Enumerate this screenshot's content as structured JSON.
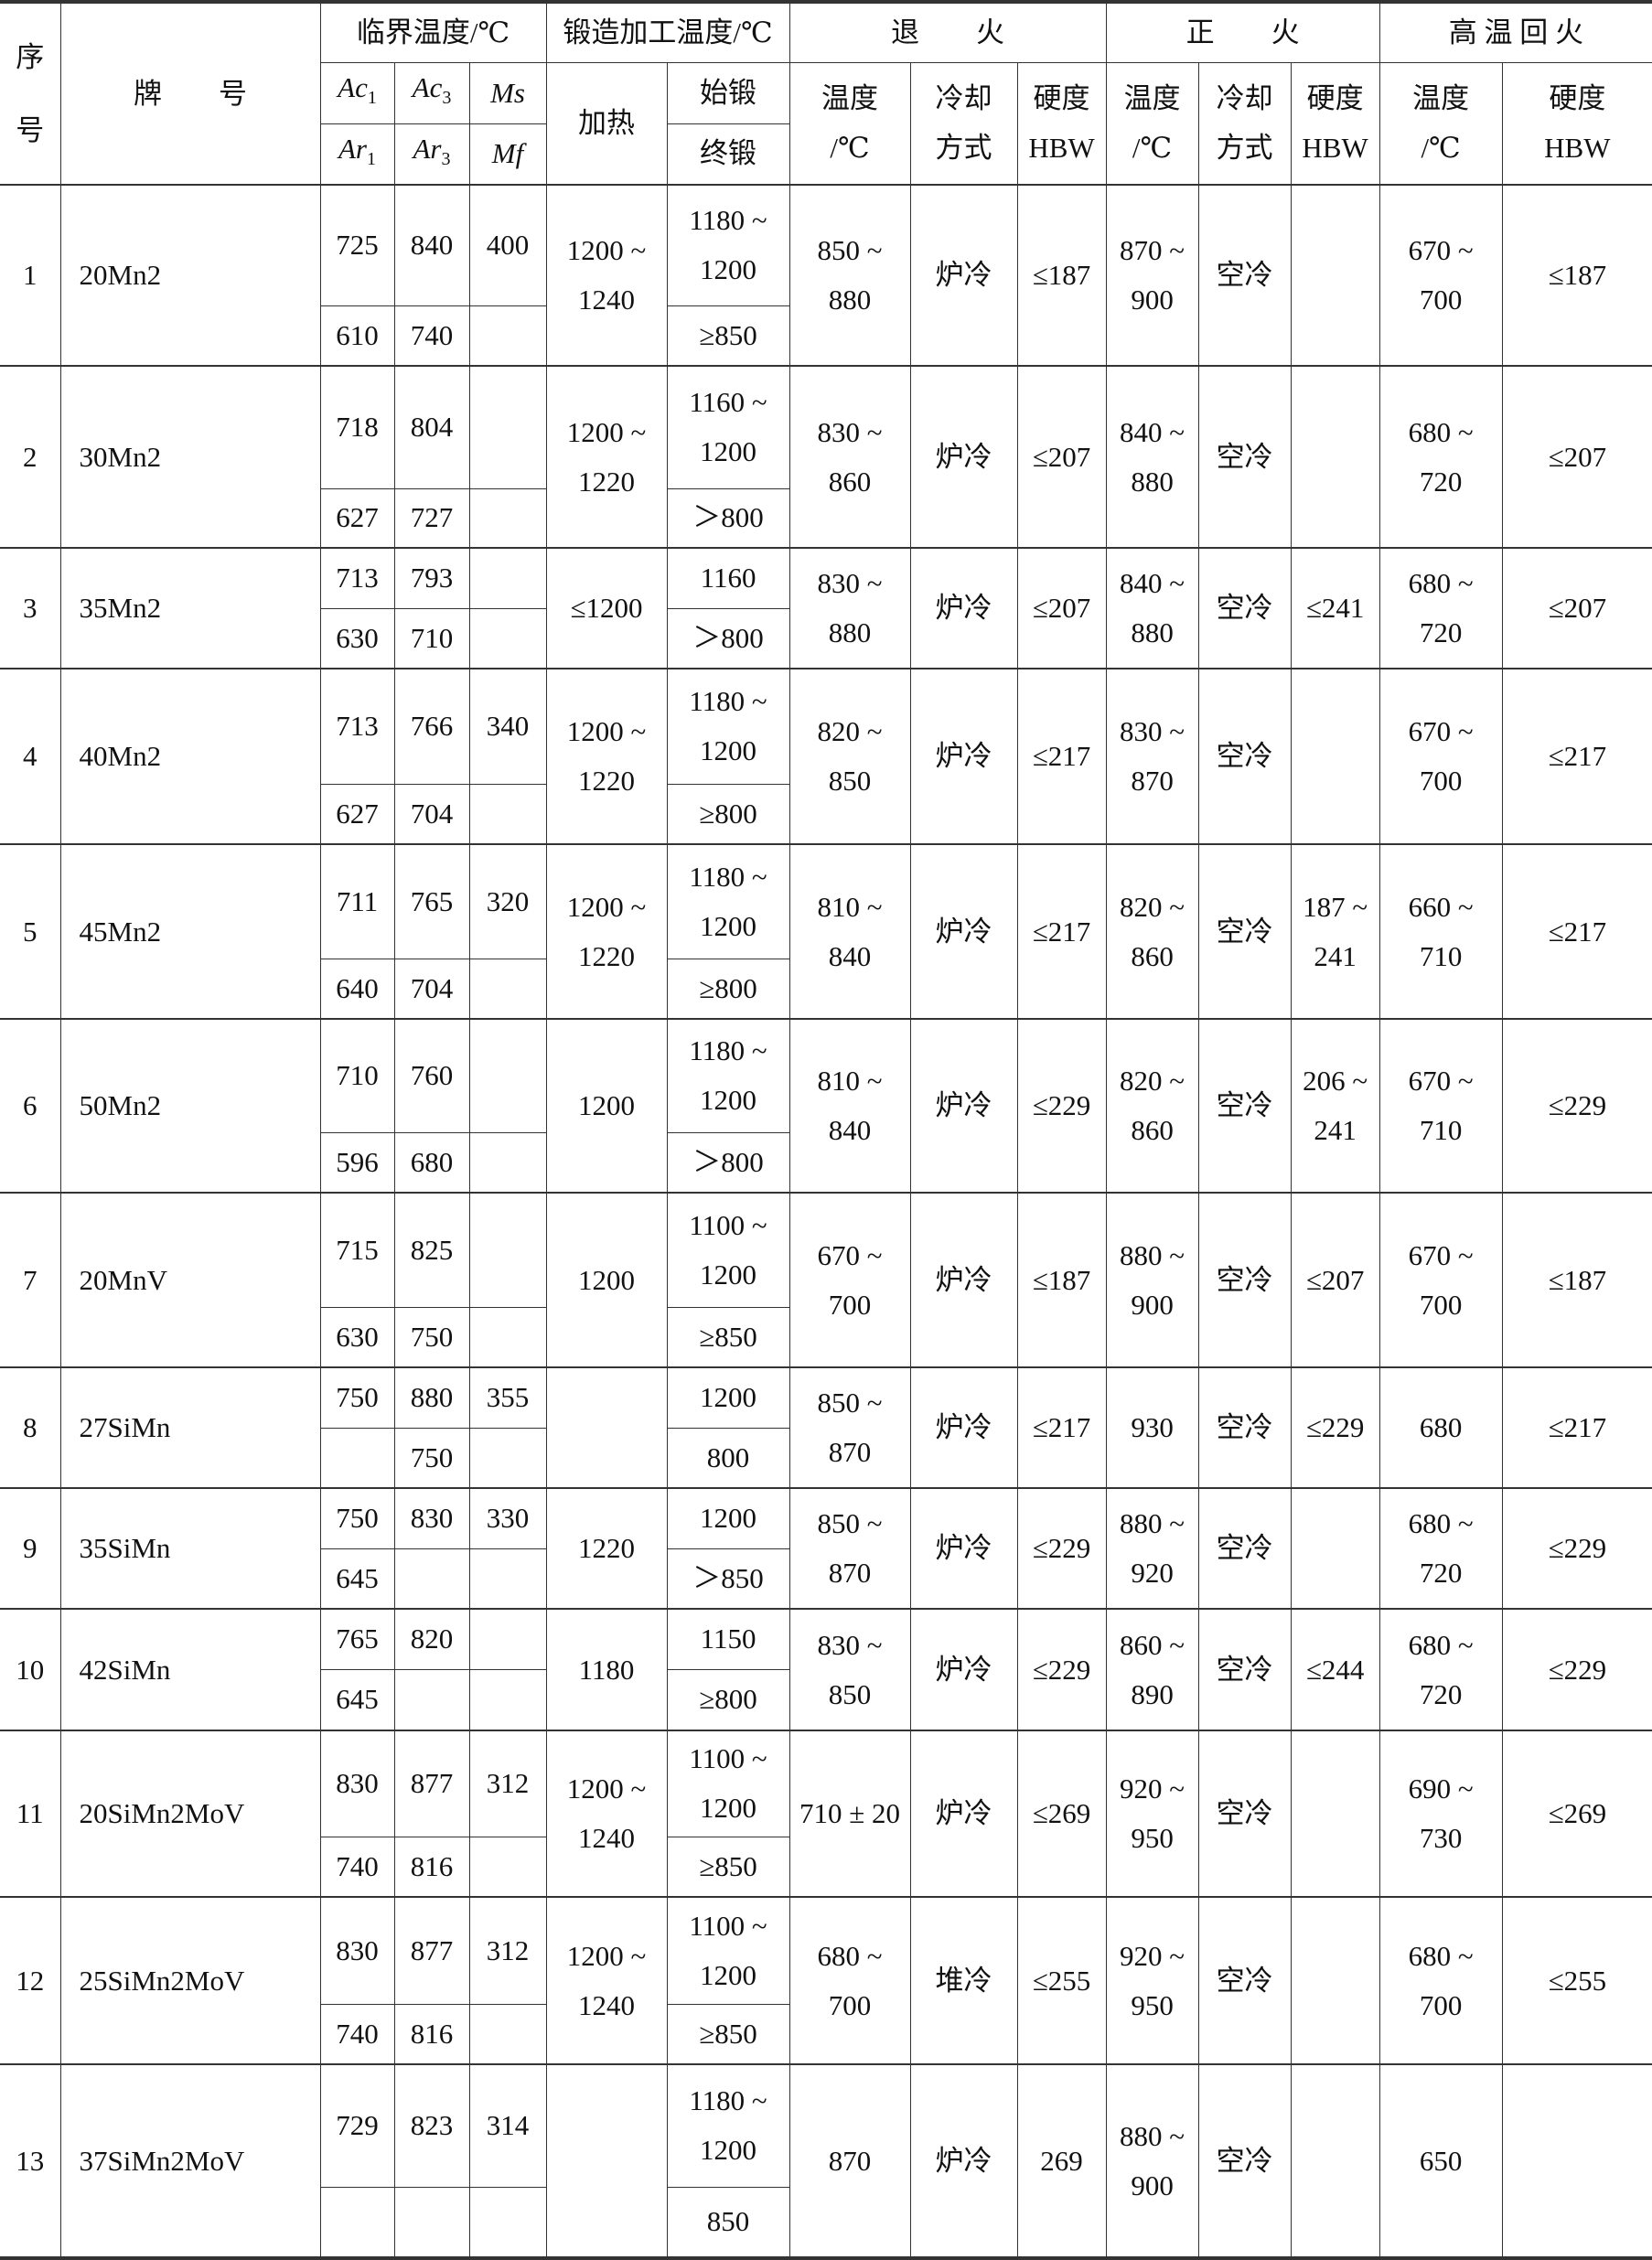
{
  "header": {
    "seq": "序\n\n号",
    "grade": "牌　　号",
    "critical": "临界温度/℃",
    "forging": "锻造加工温度/℃",
    "annealing": "退　　火",
    "normalizing": "正　　火",
    "tempering": "高 温 回 火",
    "ac1": {
      "main": "Ac",
      "sub": "1"
    },
    "ac3": {
      "main": "Ac",
      "sub": "3"
    },
    "ms": {
      "main": "Ms",
      "sub": ""
    },
    "ar1": {
      "main": "Ar",
      "sub": "1"
    },
    "ar3": {
      "main": "Ar",
      "sub": "3"
    },
    "mf": {
      "main": "Mf",
      "sub": ""
    },
    "heating": "加热",
    "start_forge": "始锻",
    "end_forge": "终锻",
    "temp": "温度\n/℃",
    "cooling": "冷却\n方式",
    "hardness": "硬度\nHBW"
  },
  "rows": [
    {
      "no": "1",
      "grade": "20Mn2",
      "ac1": "725",
      "ac3": "840",
      "ms": "400",
      "ar1": "610",
      "ar3": "740",
      "mf": "",
      "heat": "1200 ~\n1240",
      "start": "1180 ~\n1200",
      "end": "≥850",
      "an_t": "850 ~\n880",
      "an_c": "炉冷",
      "an_h": "≤187",
      "no_t": "870 ~\n900",
      "no_c": "空冷",
      "no_h": "",
      "te_t": "670 ~\n700",
      "te_h": "≤187"
    },
    {
      "no": "2",
      "grade": "30Mn2",
      "ac1": "718",
      "ac3": "804",
      "ms": "",
      "ar1": "627",
      "ar3": "727",
      "mf": "",
      "heat": "1200 ~\n1220",
      "start": "1160 ~\n1200",
      "end": "＞800",
      "an_t": "830 ~\n860",
      "an_c": "炉冷",
      "an_h": "≤207",
      "no_t": "840 ~\n880",
      "no_c": "空冷",
      "no_h": "",
      "te_t": "680 ~\n720",
      "te_h": "≤207"
    },
    {
      "no": "3",
      "grade": "35Mn2",
      "ac1": "713",
      "ac3": "793",
      "ms": "",
      "ar1": "630",
      "ar3": "710",
      "mf": "",
      "heat": "≤1200",
      "start": "1160",
      "end": "＞800",
      "an_t": "830 ~\n880",
      "an_c": "炉冷",
      "an_h": "≤207",
      "no_t": "840 ~\n880",
      "no_c": "空冷",
      "no_h": "≤241",
      "te_t": "680 ~\n720",
      "te_h": "≤207"
    },
    {
      "no": "4",
      "grade": "40Mn2",
      "ac1": "713",
      "ac3": "766",
      "ms": "340",
      "ar1": "627",
      "ar3": "704",
      "mf": "",
      "heat": "1200 ~\n1220",
      "start": "1180 ~\n1200",
      "end": "≥800",
      "an_t": "820 ~\n850",
      "an_c": "炉冷",
      "an_h": "≤217",
      "no_t": "830 ~\n870",
      "no_c": "空冷",
      "no_h": "",
      "te_t": "670 ~\n700",
      "te_h": "≤217"
    },
    {
      "no": "5",
      "grade": "45Mn2",
      "ac1": "711",
      "ac3": "765",
      "ms": "320",
      "ar1": "640",
      "ar3": "704",
      "mf": "",
      "heat": "1200 ~\n1220",
      "start": "1180 ~\n1200",
      "end": "≥800",
      "an_t": "810 ~\n840",
      "an_c": "炉冷",
      "an_h": "≤217",
      "no_t": "820 ~\n860",
      "no_c": "空冷",
      "no_h": "187 ~\n241",
      "te_t": "660 ~\n710",
      "te_h": "≤217"
    },
    {
      "no": "6",
      "grade": "50Mn2",
      "ac1": "710",
      "ac3": "760",
      "ms": "",
      "ar1": "596",
      "ar3": "680",
      "mf": "",
      "heat": "1200",
      "start": "1180 ~\n1200",
      "end": "＞800",
      "an_t": "810 ~\n840",
      "an_c": "炉冷",
      "an_h": "≤229",
      "no_t": "820 ~\n860",
      "no_c": "空冷",
      "no_h": "206 ~\n241",
      "te_t": "670 ~\n710",
      "te_h": "≤229"
    },
    {
      "no": "7",
      "grade": "20MnV",
      "ac1": "715",
      "ac3": "825",
      "ms": "",
      "ar1": "630",
      "ar3": "750",
      "mf": "",
      "heat": "1200",
      "start": "1100 ~\n1200",
      "end": "≥850",
      "an_t": "670 ~\n700",
      "an_c": "炉冷",
      "an_h": "≤187",
      "no_t": "880 ~\n900",
      "no_c": "空冷",
      "no_h": "≤207",
      "te_t": "670 ~\n700",
      "te_h": "≤187"
    },
    {
      "no": "8",
      "grade": "27SiMn",
      "ac1": "750",
      "ac3": "880",
      "ms": "355",
      "ar1": "",
      "ar3": "750",
      "mf": "",
      "heat": "",
      "start": "1200",
      "end": "800",
      "an_t": "850 ~\n870",
      "an_c": "炉冷",
      "an_h": "≤217",
      "no_t": "930",
      "no_c": "空冷",
      "no_h": "≤229",
      "te_t": "680",
      "te_h": "≤217"
    },
    {
      "no": "9",
      "grade": "35SiMn",
      "ac1": "750",
      "ac3": "830",
      "ms": "330",
      "ar1": "645",
      "ar3": "",
      "mf": "",
      "heat": "1220",
      "start": "1200",
      "end": "＞850",
      "an_t": "850 ~\n870",
      "an_c": "炉冷",
      "an_h": "≤229",
      "no_t": "880 ~\n920",
      "no_c": "空冷",
      "no_h": "",
      "te_t": "680 ~\n720",
      "te_h": "≤229"
    },
    {
      "no": "10",
      "grade": "42SiMn",
      "ac1": "765",
      "ac3": "820",
      "ms": "",
      "ar1": "645",
      "ar3": "",
      "mf": "",
      "heat": "1180",
      "start": "1150",
      "end": "≥800",
      "an_t": "830 ~\n850",
      "an_c": "炉冷",
      "an_h": "≤229",
      "no_t": "860 ~\n890",
      "no_c": "空冷",
      "no_h": "≤244",
      "te_t": "680 ~\n720",
      "te_h": "≤229"
    },
    {
      "no": "11",
      "grade": "20SiMn2MoV",
      "ac1": "830",
      "ac3": "877",
      "ms": "312",
      "ar1": "740",
      "ar3": "816",
      "mf": "",
      "heat": "1200 ~\n1240",
      "start": "1100 ~\n1200",
      "end": "≥850",
      "an_t": "710 ± 20",
      "an_c": "炉冷",
      "an_h": "≤269",
      "no_t": "920 ~\n950",
      "no_c": "空冷",
      "no_h": "",
      "te_t": "690 ~\n730",
      "te_h": "≤269"
    },
    {
      "no": "12",
      "grade": "25SiMn2MoV",
      "ac1": "830",
      "ac3": "877",
      "ms": "312",
      "ar1": "740",
      "ar3": "816",
      "mf": "",
      "heat": "1200 ~\n1240",
      "start": "1100 ~\n1200",
      "end": "≥850",
      "an_t": "680 ~\n700",
      "an_c": "堆冷",
      "an_h": "≤255",
      "no_t": "920 ~\n950",
      "no_c": "空冷",
      "no_h": "",
      "te_t": "680 ~\n700",
      "te_h": "≤255"
    },
    {
      "no": "13",
      "grade": "37SiMn2MoV",
      "ac1": "729",
      "ac3": "823",
      "ms": "314",
      "ar1": "",
      "ar3": "",
      "mf": "",
      "heat": "",
      "start": "1180 ~\n1200",
      "end": "850",
      "an_t": "870",
      "an_c": "炉冷",
      "an_h": "269",
      "no_t": "880 ~\n900",
      "no_c": "空冷",
      "no_h": "",
      "te_t": "650",
      "te_h": ""
    }
  ]
}
